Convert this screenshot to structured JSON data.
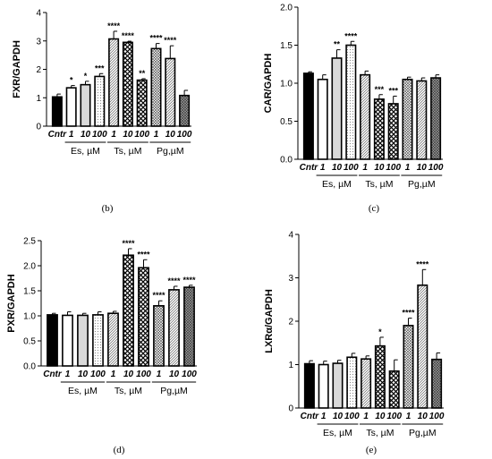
{
  "colors": {
    "axis": "#000000",
    "control": "#000000",
    "es": "#ffffff",
    "ts": "#f2f2f2",
    "pg": "#e8e8e8",
    "ts_hatch": "#000000",
    "pg_hatch": "#555555"
  },
  "chart_data": [
    {
      "type": "bar",
      "panel": "(b)",
      "ylabel": "FXR/GAPDH",
      "ylim": [
        0,
        4
      ],
      "yticks": [
        "0",
        "1",
        "2",
        "3",
        "4"
      ],
      "categories": [
        "Cntr",
        "1",
        "10",
        "100",
        "1",
        "10",
        "100",
        "1",
        "10",
        "100"
      ],
      "groups": [
        "Es, µM",
        "Ts, µM",
        "Pg,µM"
      ],
      "values": [
        1.03,
        1.35,
        1.46,
        1.75,
        3.07,
        2.95,
        1.62,
        2.73,
        2.38,
        1.08
      ],
      "errors": [
        0.1,
        0.08,
        0.12,
        0.1,
        0.27,
        0.04,
        0.05,
        0.18,
        0.45,
        0.18
      ],
      "significance": [
        "",
        "*",
        "*",
        "***",
        "****",
        "****",
        "**",
        "****",
        "****",
        ""
      ]
    },
    {
      "type": "bar",
      "panel": "(c)",
      "ylabel": "CAR/GAPDH",
      "ylim": [
        0,
        2.0
      ],
      "yticks": [
        "0.0",
        "0.5",
        "1.0",
        "1.5",
        "2.0"
      ],
      "categories": [
        "Cntr",
        "1",
        "10",
        "100",
        "1",
        "10",
        "100",
        "1",
        "10",
        "100"
      ],
      "groups": [
        "Es, µM",
        "Ts, µM",
        "Pg,µM"
      ],
      "values": [
        1.13,
        1.05,
        1.33,
        1.5,
        1.11,
        0.79,
        0.73,
        1.05,
        1.03,
        1.07
      ],
      "errors": [
        0.02,
        0.06,
        0.11,
        0.05,
        0.05,
        0.06,
        0.1,
        0.03,
        0.04,
        0.04
      ],
      "significance": [
        "",
        "",
        "**",
        "****",
        "",
        "***",
        "***",
        "",
        "",
        ""
      ]
    },
    {
      "type": "bar",
      "panel": "(d)",
      "ylabel": "PXR/GAPDH",
      "ylim": [
        0,
        2.5
      ],
      "yticks": [
        "0.0",
        "0.5",
        "1.0",
        "1.5",
        "2.0",
        "2.5"
      ],
      "categories": [
        "Cntr",
        "1",
        "10",
        "100",
        "1",
        "10",
        "100",
        "1",
        "10",
        "100"
      ],
      "groups": [
        "Es, µM",
        "Ts, µM",
        "Pg,µM"
      ],
      "values": [
        1.02,
        1.01,
        1.01,
        1.02,
        1.05,
        2.21,
        1.96,
        1.2,
        1.52,
        1.57
      ],
      "errors": [
        0.03,
        0.07,
        0.04,
        0.06,
        0.04,
        0.13,
        0.16,
        0.1,
        0.07,
        0.04
      ],
      "significance": [
        "",
        "",
        "",
        "",
        "",
        "****",
        "****",
        "****",
        "****",
        "****"
      ]
    },
    {
      "type": "bar",
      "panel": "(e)",
      "ylabel": "LXRα/GAPDH",
      "ylim": [
        0,
        4
      ],
      "yticks": [
        "0",
        "1",
        "2",
        "3",
        "4"
      ],
      "categories": [
        "Cntr",
        "1",
        "10",
        "100",
        "1",
        "10",
        "100",
        "1",
        "10",
        "100"
      ],
      "groups": [
        "Es, µM",
        "Ts, µM",
        "Pg,µM"
      ],
      "values": [
        1.02,
        1.0,
        1.03,
        1.17,
        1.13,
        1.43,
        0.85,
        1.9,
        2.83,
        1.12
      ],
      "errors": [
        0.07,
        0.08,
        0.07,
        0.09,
        0.07,
        0.2,
        0.26,
        0.17,
        0.36,
        0.15
      ],
      "significance": [
        "",
        "",
        "",
        "",
        "",
        "*",
        "",
        "****",
        "****",
        ""
      ]
    }
  ]
}
